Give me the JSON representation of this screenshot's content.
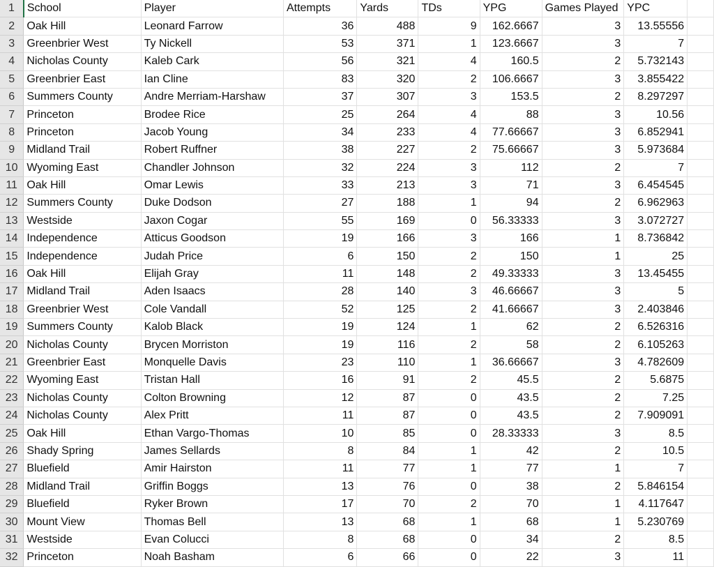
{
  "columns": [
    "School",
    "Player",
    "Attempts",
    "Yards",
    "TDs",
    "YPG",
    "Games Played",
    "YPC"
  ],
  "rows": [
    [
      "Oak Hill",
      "Leonard Farrow",
      "36",
      "488",
      "9",
      "162.6667",
      "3",
      "13.55556"
    ],
    [
      "Greenbrier West",
      "Ty Nickell",
      "53",
      "371",
      "1",
      "123.6667",
      "3",
      "7"
    ],
    [
      "Nicholas County",
      "Kaleb Cark",
      "56",
      "321",
      "4",
      "160.5",
      "2",
      "5.732143"
    ],
    [
      "Greenbrier East",
      "Ian Cline",
      "83",
      "320",
      "2",
      "106.6667",
      "3",
      "3.855422"
    ],
    [
      "Summers County",
      "Andre Merriam-Harshaw",
      "37",
      "307",
      "3",
      "153.5",
      "2",
      "8.297297"
    ],
    [
      "Princeton",
      "Brodee Rice",
      "25",
      "264",
      "4",
      "88",
      "3",
      "10.56"
    ],
    [
      "Princeton",
      "Jacob Young",
      "34",
      "233",
      "4",
      "77.66667",
      "3",
      "6.852941"
    ],
    [
      "Midland Trail",
      "Robert Ruffner",
      "38",
      "227",
      "2",
      "75.66667",
      "3",
      "5.973684"
    ],
    [
      "Wyoming East",
      "Chandler Johnson",
      "32",
      "224",
      "3",
      "112",
      "2",
      "7"
    ],
    [
      "Oak Hill",
      "Omar Lewis",
      "33",
      "213",
      "3",
      "71",
      "3",
      "6.454545"
    ],
    [
      "Summers County",
      "Duke Dodson",
      "27",
      "188",
      "1",
      "94",
      "2",
      "6.962963"
    ],
    [
      "Westside",
      "Jaxon Cogar",
      "55",
      "169",
      "0",
      "56.33333",
      "3",
      "3.072727"
    ],
    [
      "Independence",
      "Atticus Goodson",
      "19",
      "166",
      "3",
      "166",
      "1",
      "8.736842"
    ],
    [
      "Independence",
      "Judah Price",
      "6",
      "150",
      "2",
      "150",
      "1",
      "25"
    ],
    [
      "Oak Hill",
      "Elijah Gray",
      "11",
      "148",
      "2",
      "49.33333",
      "3",
      "13.45455"
    ],
    [
      "Midland Trail",
      "Aden Isaacs",
      "28",
      "140",
      "3",
      "46.66667",
      "3",
      "5"
    ],
    [
      "Greenbrier West",
      "Cole Vandall",
      "52",
      "125",
      "2",
      "41.66667",
      "3",
      "2.403846"
    ],
    [
      "Summers County",
      "Kalob Black",
      "19",
      "124",
      "1",
      "62",
      "2",
      "6.526316"
    ],
    [
      "Nicholas County",
      "Brycen Morriston",
      "19",
      "116",
      "2",
      "58",
      "2",
      "6.105263"
    ],
    [
      "Greenbrier East",
      "Monquelle Davis",
      "23",
      "110",
      "1",
      "36.66667",
      "3",
      "4.782609"
    ],
    [
      "Wyoming East",
      "Tristan Hall",
      "16",
      "91",
      "2",
      "45.5",
      "2",
      "5.6875"
    ],
    [
      "Nicholas County",
      "Colton Browning",
      "12",
      "87",
      "0",
      "43.5",
      "2",
      "7.25"
    ],
    [
      "Nicholas County",
      "Alex Pritt",
      "11",
      "87",
      "0",
      "43.5",
      "2",
      "7.909091"
    ],
    [
      "Oak Hill",
      "Ethan Vargo-Thomas",
      "10",
      "85",
      "0",
      "28.33333",
      "3",
      "8.5"
    ],
    [
      "Shady Spring",
      "James Sellards",
      "8",
      "84",
      "1",
      "42",
      "2",
      "10.5"
    ],
    [
      "Bluefield",
      "Amir Hairston",
      "11",
      "77",
      "1",
      "77",
      "1",
      "7"
    ],
    [
      "Midland Trail",
      "Griffin Boggs",
      "13",
      "76",
      "0",
      "38",
      "2",
      "5.846154"
    ],
    [
      "Bluefield",
      "Ryker Brown",
      "17",
      "70",
      "2",
      "70",
      "1",
      "4.117647"
    ],
    [
      "Mount View",
      "Thomas Bell",
      "13",
      "68",
      "1",
      "68",
      "1",
      "5.230769"
    ],
    [
      "Westside",
      "Evan Colucci",
      "8",
      "68",
      "0",
      "34",
      "2",
      "8.5"
    ],
    [
      "Princeton",
      "Noah Basham",
      "6",
      "66",
      "0",
      "22",
      "3",
      "11"
    ]
  ]
}
